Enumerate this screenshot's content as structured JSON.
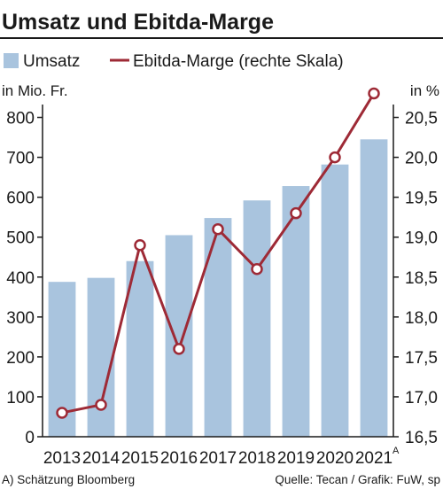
{
  "chart_data": {
    "type": "bar",
    "title": "Umsatz und Ebitda-Marge",
    "categories": [
      "2013",
      "2014",
      "2015",
      "2016",
      "2017",
      "2018",
      "2019",
      "2020",
      "2021"
    ],
    "category_footnote": {
      "category": "2021",
      "marker": "A"
    },
    "left_axis": {
      "unit_label": "in Mio. Fr.",
      "ylim": [
        0,
        850
      ],
      "ticks": [
        0,
        100,
        200,
        300,
        400,
        500,
        600,
        700,
        800
      ]
    },
    "right_axis": {
      "unit_label": "in %",
      "ylim": [
        16.5,
        20.75
      ],
      "ticks": [
        "16,5",
        "17,0",
        "17,5",
        "18,0",
        "18,5",
        "19,0",
        "19,5",
        "20,0",
        "20,5"
      ]
    },
    "series": [
      {
        "name": "Umsatz",
        "type": "bar",
        "axis": "left",
        "color": "#a9c4de",
        "values": [
          388,
          398,
          440,
          505,
          548,
          592,
          628,
          682,
          745
        ]
      },
      {
        "name": "Ebitda-Marge (rechte Skala)",
        "type": "line",
        "axis": "right",
        "color": "#9e2a36",
        "values": [
          16.8,
          16.9,
          18.9,
          17.6,
          19.1,
          18.6,
          19.3,
          20.0,
          20.8
        ]
      }
    ],
    "grid": false,
    "legend": "top"
  },
  "footnote": "A) Schätzung Bloomberg",
  "source": "Quelle: Tecan / Grafik: FuW, sp"
}
